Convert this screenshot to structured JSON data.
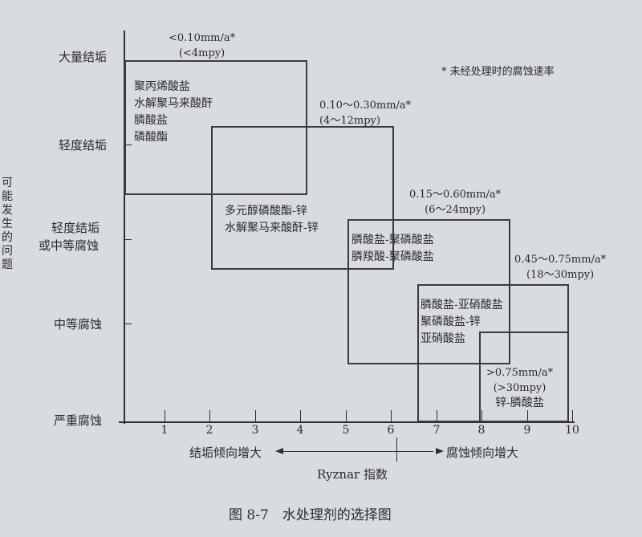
{
  "y_axis": {
    "title": "可能发生的问题",
    "levels": [
      "大量结垢",
      "轻度结垢",
      "轻度结垢",
      "或中等腐蚀",
      "中等腐蚀",
      "严重腐蚀"
    ]
  },
  "x_axis": {
    "title": "Ryznar 指数",
    "ticks": [
      "1",
      "2",
      "3",
      "4",
      "5",
      "6",
      "7",
      "8",
      "9",
      "10"
    ],
    "left_note": "结垢倾向增大",
    "right_note": "腐蚀倾向增大"
  },
  "footnote": "* 未经处理时的腐蚀速率",
  "regions": [
    {
      "rate": "<0.10mm/a*",
      "rate_mpy": "(<4mpy)",
      "agents": [
        "聚丙烯酸盐",
        "水解聚马来酸酐",
        "膦酸盐",
        "磷酸酯"
      ]
    },
    {
      "rate": "0.10～0.30mm/a*",
      "rate_mpy": "(4～12mpy)",
      "agents": [
        "多元醇磷酸酯-锌",
        "水解聚马来酸酐-锌"
      ]
    },
    {
      "rate": "0.15～0.60mm/a*",
      "rate_mpy": "(6～24mpy)",
      "agents": [
        "膦酸盐-聚磷酸盐",
        "膦羧酸-聚磷酸盐"
      ]
    },
    {
      "rate": "0.45～0.75mm/a*",
      "rate_mpy": "(18～30mpy)",
      "agents": [
        "膦酸盐-亚硝酸盐",
        "聚磷酸盐-锌",
        "亚硝酸盐"
      ]
    },
    {
      "rate": ">0.75mm/a*",
      "rate_mpy": "(>30mpy)",
      "agents": [
        "锌-膦酸盐"
      ]
    }
  ],
  "caption": "图 8-7　水处理剂的选择图"
}
